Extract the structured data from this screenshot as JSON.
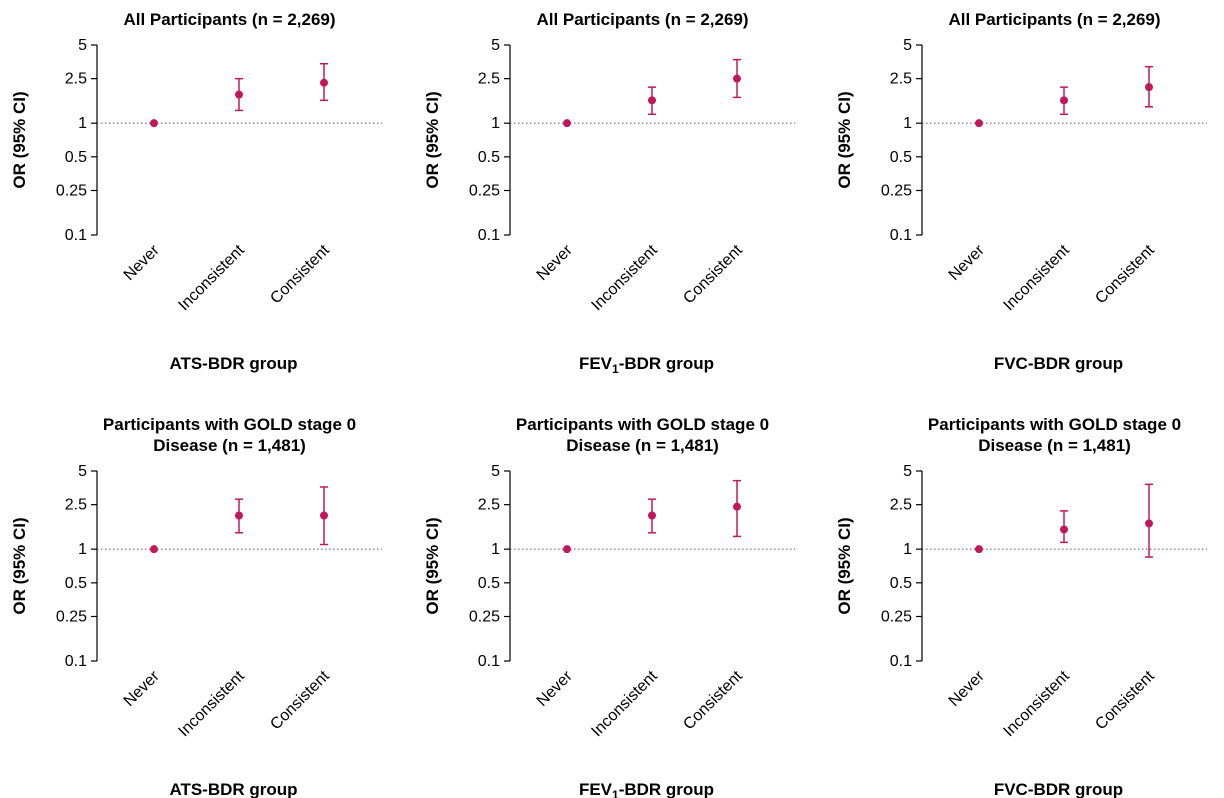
{
  "chart_data": [
    {
      "type": "scatter",
      "title": [
        "All Participants (n = 2,269)"
      ],
      "xlabel": "ATS-BDR group",
      "ylabel": "OR (95% CI)",
      "categories": [
        "Never",
        "Inconsistent",
        "Consistent"
      ],
      "ylim": [
        0.1,
        5
      ],
      "yscale": "log",
      "yticks": [
        0.1,
        0.25,
        0.5,
        1,
        2.5,
        5
      ],
      "ytick_labels": [
        "0.1",
        "0.25",
        "0.5",
        "1",
        "2.5",
        "5"
      ],
      "reference_line": 1,
      "values": [
        1,
        1.8,
        2.3
      ],
      "ci_low": [
        1,
        1.3,
        1.6
      ],
      "ci_high": [
        1,
        2.5,
        3.4
      ],
      "color": "#c2185b"
    },
    {
      "type": "scatter",
      "title": [
        "All Participants (n = 2,269)"
      ],
      "xlabel": "FEV1-BDR group",
      "ylabel": "OR (95% CI)",
      "categories": [
        "Never",
        "Inconsistent",
        "Consistent"
      ],
      "ylim": [
        0.1,
        5
      ],
      "yscale": "log",
      "yticks": [
        0.1,
        0.25,
        0.5,
        1,
        2.5,
        5
      ],
      "ytick_labels": [
        "0.1",
        "0.25",
        "0.5",
        "1",
        "2.5",
        "5"
      ],
      "reference_line": 1,
      "values": [
        1,
        1.6,
        2.5
      ],
      "ci_low": [
        1,
        1.2,
        1.7
      ],
      "ci_high": [
        1,
        2.1,
        3.7
      ],
      "color": "#c2185b"
    },
    {
      "type": "scatter",
      "title": [
        "All Participants (n = 2,269)"
      ],
      "xlabel": "FVC-BDR group",
      "ylabel": "OR (95% CI)",
      "categories": [
        "Never",
        "Inconsistent",
        "Consistent"
      ],
      "ylim": [
        0.1,
        5
      ],
      "yscale": "log",
      "yticks": [
        0.1,
        0.25,
        0.5,
        1,
        2.5,
        5
      ],
      "ytick_labels": [
        "0.1",
        "0.25",
        "0.5",
        "1",
        "2.5",
        "5"
      ],
      "reference_line": 1,
      "values": [
        1,
        1.6,
        2.1
      ],
      "ci_low": [
        1,
        1.2,
        1.4
      ],
      "ci_high": [
        1,
        2.1,
        3.2
      ],
      "color": "#c2185b"
    },
    {
      "type": "scatter",
      "title": [
        "Participants with GOLD stage 0",
        "Disease (n = 1,481)"
      ],
      "xlabel": "ATS-BDR group",
      "ylabel": "OR (95% CI)",
      "categories": [
        "Never",
        "Inconsistent",
        "Consistent"
      ],
      "ylim": [
        0.1,
        5
      ],
      "yscale": "log",
      "yticks": [
        0.1,
        0.25,
        0.5,
        1,
        2.5,
        5
      ],
      "ytick_labels": [
        "0.1",
        "0.25",
        "0.5",
        "1",
        "2.5",
        "5"
      ],
      "reference_line": 1,
      "values": [
        1,
        2.0,
        2.0
      ],
      "ci_low": [
        1,
        1.4,
        1.1
      ],
      "ci_high": [
        1,
        2.8,
        3.6
      ],
      "color": "#c2185b"
    },
    {
      "type": "scatter",
      "title": [
        "Participants with GOLD stage 0",
        "Disease (n = 1,481)"
      ],
      "xlabel": "FEV1-BDR group",
      "ylabel": "OR (95% CI)",
      "categories": [
        "Never",
        "Inconsistent",
        "Consistent"
      ],
      "ylim": [
        0.1,
        5
      ],
      "yscale": "log",
      "yticks": [
        0.1,
        0.25,
        0.5,
        1,
        2.5,
        5
      ],
      "ytick_labels": [
        "0.1",
        "0.25",
        "0.5",
        "1",
        "2.5",
        "5"
      ],
      "reference_line": 1,
      "values": [
        1,
        2.0,
        2.4
      ],
      "ci_low": [
        1,
        1.4,
        1.3
      ],
      "ci_high": [
        1,
        2.8,
        4.1
      ],
      "color": "#c2185b"
    },
    {
      "type": "scatter",
      "title": [
        "Participants with GOLD stage 0",
        "Disease (n = 1,481)"
      ],
      "xlabel": "FVC-BDR group",
      "ylabel": "OR (95% CI)",
      "categories": [
        "Never",
        "Inconsistent",
        "Consistent"
      ],
      "ylim": [
        0.1,
        5
      ],
      "yscale": "log",
      "yticks": [
        0.1,
        0.25,
        0.5,
        1,
        2.5,
        5
      ],
      "ytick_labels": [
        "0.1",
        "0.25",
        "0.5",
        "1",
        "2.5",
        "5"
      ],
      "reference_line": 1,
      "values": [
        1,
        1.5,
        1.7
      ],
      "ci_low": [
        1,
        1.15,
        0.85
      ],
      "ci_high": [
        1,
        2.2,
        3.8
      ],
      "color": "#c2185b"
    }
  ]
}
